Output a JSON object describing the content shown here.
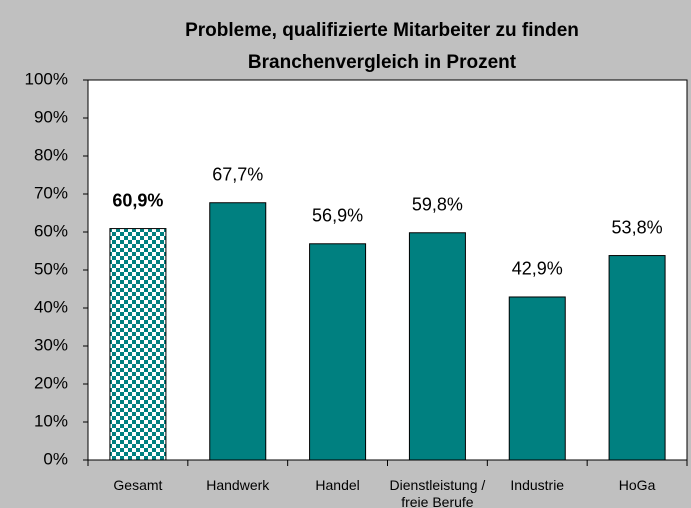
{
  "chart_data": {
    "type": "bar",
    "title": "Probleme, qualifizierte Mitarbeiter zu finden",
    "subtitle": "Branchenvergleich in Prozent",
    "categories": [
      "Gesamt",
      "Handwerk",
      "Handel",
      "Dienstleistung / freie Berufe",
      "Industrie",
      "HoGa"
    ],
    "values": [
      60.9,
      67.7,
      56.9,
      59.8,
      42.9,
      53.8
    ],
    "value_labels": [
      "60,9%",
      "67,7%",
      "56,9%",
      "59,8%",
      "42,9%",
      "53,8%"
    ],
    "color": "#008080",
    "highlight_category": "Gesamt",
    "ylim": [
      0,
      100
    ],
    "yticks": [
      {
        "value": 0,
        "label": "0%"
      },
      {
        "value": 10,
        "label": "10%"
      },
      {
        "value": 20,
        "label": "20%"
      },
      {
        "value": 30,
        "label": "30%"
      },
      {
        "value": 40,
        "label": "40%"
      },
      {
        "value": 50,
        "label": "50%"
      },
      {
        "value": 60,
        "label": "60%"
      },
      {
        "value": 70,
        "label": "70%"
      },
      {
        "value": 80,
        "label": "80%"
      },
      {
        "value": 90,
        "label": "90%"
      },
      {
        "value": 100,
        "label": "100%"
      }
    ],
    "grid": false
  }
}
